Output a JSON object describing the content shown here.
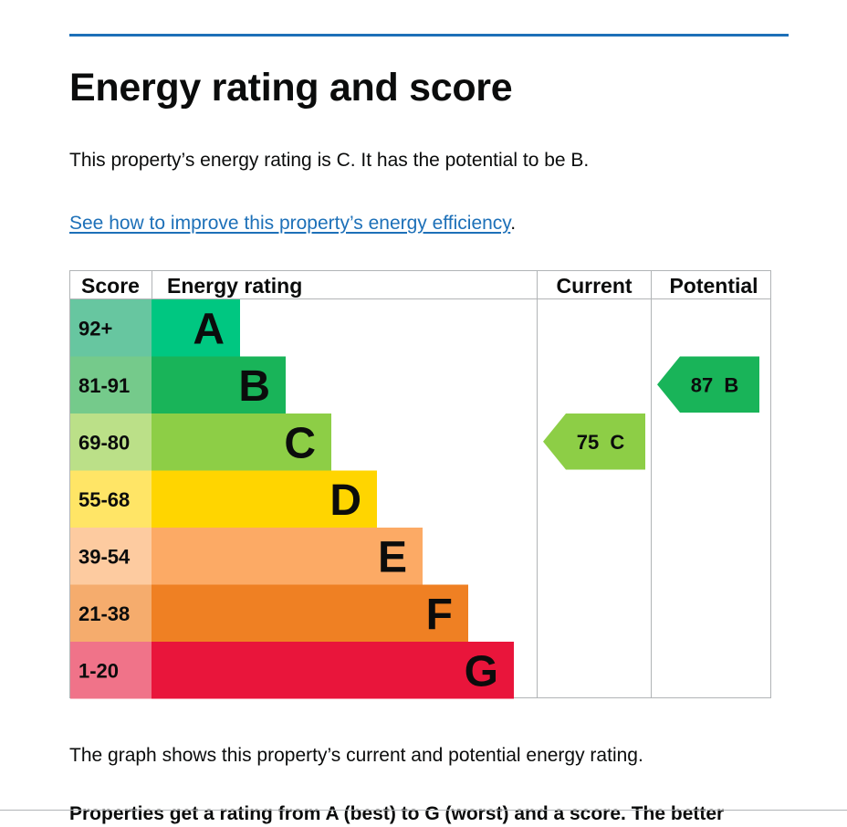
{
  "page": {
    "heading": "Energy rating and score",
    "intro": "This property’s energy rating is C. It has the potential to be B.",
    "link_text": "See how to improve this property’s energy efficiency",
    "link_suffix": ".",
    "graph_description": "The graph shows this property’s current and potential energy rating.",
    "cut_off_text": "Properties get a rating from A (best) to G (worst) and a score. The better"
  },
  "chart_data": {
    "type": "bar",
    "headers": {
      "score": "Score",
      "rating": "Energy rating",
      "current": "Current",
      "potential": "Potential"
    },
    "bands": [
      {
        "letter": "A",
        "range": "92+",
        "level": 1,
        "color": "#00c781",
        "score_color": "#67c6a0"
      },
      {
        "letter": "B",
        "range": "81-91",
        "level": 2,
        "color": "#19b459",
        "score_color": "#75ca8b"
      },
      {
        "letter": "C",
        "range": "69-80",
        "level": 3,
        "color": "#8dce46",
        "score_color": "#bbe088"
      },
      {
        "letter": "D",
        "range": "55-68",
        "level": 4,
        "color": "#ffd500",
        "score_color": "#ffe566"
      },
      {
        "letter": "E",
        "range": "39-54",
        "level": 5,
        "color": "#fcaa65",
        "score_color": "#fdcba0"
      },
      {
        "letter": "F",
        "range": "21-38",
        "level": 6,
        "color": "#ef8023",
        "score_color": "#f5ac6d"
      },
      {
        "letter": "G",
        "range": "1-20",
        "level": 7,
        "color": "#e9153b",
        "score_color": "#f07389"
      }
    ],
    "current": {
      "score": 75,
      "letter": "C",
      "color": "#8dce46"
    },
    "potential": {
      "score": 87,
      "letter": "B",
      "color": "#19b459"
    }
  }
}
